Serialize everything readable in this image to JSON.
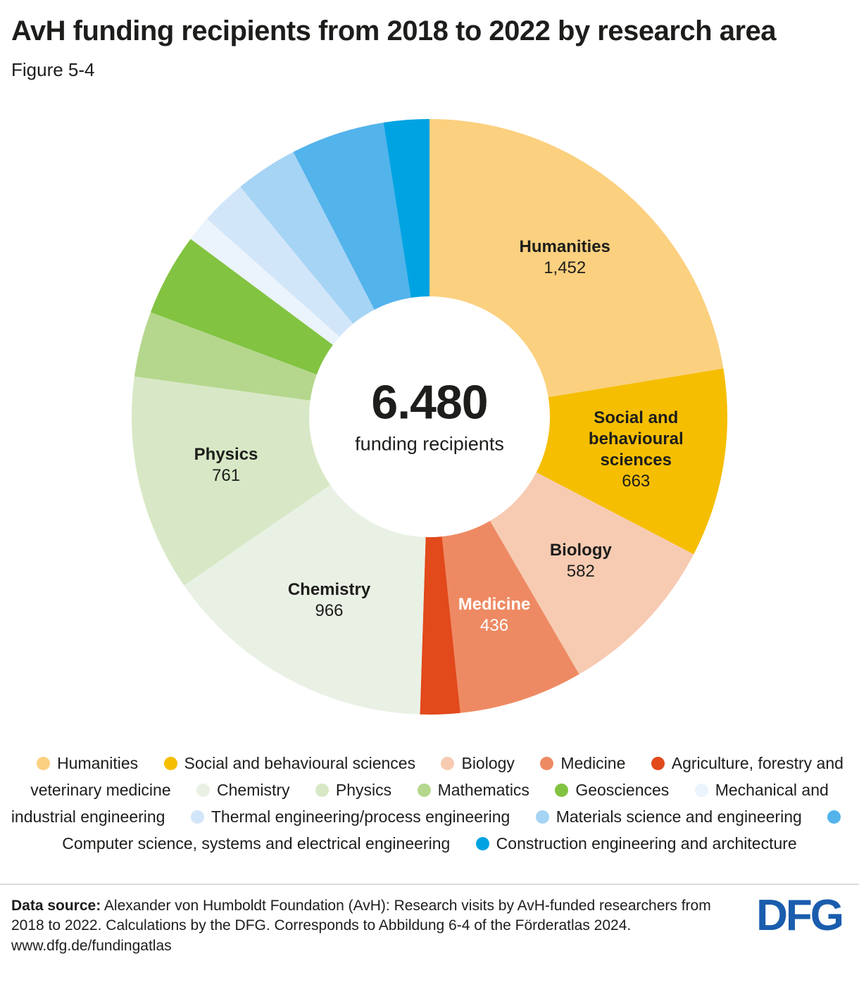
{
  "header": {
    "title": "AvH funding recipients from 2018 to 2022 by research area",
    "figure_label": "Figure 5-4"
  },
  "chart_data": {
    "type": "pie",
    "title": "AvH funding recipients from 2018 to 2022 by research area",
    "total": 6480,
    "center": {
      "value_label": "6.480",
      "caption": "funding recipients"
    },
    "legend_position": "bottom",
    "segments": [
      {
        "name": "Humanities",
        "value": 1452,
        "value_label": "1,452",
        "color": "#FBD07F",
        "label_lines": [
          "Humanities"
        ],
        "label_color": "#1d1d1b"
      },
      {
        "name": "Social and behavioural sciences",
        "value": 663,
        "value_label": "663",
        "color": "#F5BE00",
        "label_lines": [
          "Social and",
          "behavioural",
          "sciences"
        ],
        "label_color": "#1d1d1b"
      },
      {
        "name": "Biology",
        "value": 582,
        "value_label": "582",
        "color": "#F7CBB2",
        "label_lines": [
          "Biology"
        ],
        "label_color": "#1d1d1b"
      },
      {
        "name": "Medicine",
        "value": 436,
        "value_label": "436",
        "color": "#EE8A63",
        "label_lines": [
          "Medicine"
        ],
        "label_color": "#ffffff"
      },
      {
        "name": "Agriculture, forestry and veterinary medicine",
        "value": 140,
        "color": "#E2491B"
      },
      {
        "name": "Chemistry",
        "value": 966,
        "value_label": "966",
        "color": "#E9F1E5",
        "label_lines": [
          "Chemistry"
        ],
        "label_color": "#1d1d1b"
      },
      {
        "name": "Physics",
        "value": 761,
        "value_label": "761",
        "color": "#D8E8C6",
        "label_lines": [
          "Physics"
        ],
        "label_color": "#1d1d1b"
      },
      {
        "name": "Mathematics",
        "value": 230,
        "color": "#B5D78D"
      },
      {
        "name": "Geosciences",
        "value": 290,
        "color": "#82C341"
      },
      {
        "name": "Mechanical and industrial engineering",
        "value": 90,
        "color": "#EBF3FC"
      },
      {
        "name": "Thermal engineering/process engineering",
        "value": 160,
        "color": "#D2E6F9"
      },
      {
        "name": "Materials science and engineering",
        "value": 220,
        "color": "#A6D4F5"
      },
      {
        "name": "Computer science, systems and electrical engineering",
        "value": 330,
        "color": "#53B3EB"
      },
      {
        "name": "Construction engineering and architecture",
        "value": 160,
        "color": "#00A3E2"
      }
    ]
  },
  "legend": {
    "items": [
      {
        "label": "Humanities",
        "color": "#FBD07F"
      },
      {
        "label": "Social and behavioural sciences",
        "color": "#F5BE00"
      },
      {
        "label": "Biology",
        "color": "#F7CBB2"
      },
      {
        "label": "Medicine",
        "color": "#EE8A63"
      },
      {
        "label": "Agriculture, forestry and veterinary medicine",
        "color": "#E2491B"
      },
      {
        "label": "Chemistry",
        "color": "#E9F1E5"
      },
      {
        "label": "Physics",
        "color": "#D8E8C6"
      },
      {
        "label": "Mathematics",
        "color": "#B5D78D"
      },
      {
        "label": "Geosciences",
        "color": "#82C341"
      },
      {
        "label": "Mechanical and industrial engineering",
        "color": "#EBF3FC"
      },
      {
        "label": "Thermal engineering/process engineering",
        "color": "#D2E6F9"
      },
      {
        "label": "Materials science and engineering",
        "color": "#A6D4F5"
      },
      {
        "label": "Computer science, systems and electrical engineering",
        "color": "#53B3EB"
      },
      {
        "label": "Construction engineering and architecture",
        "color": "#00A3E2"
      }
    ]
  },
  "footer": {
    "source_label": "Data source:",
    "source_text": "Alexander von Humboldt Foundation (AvH): Research visits by AvH-funded researchers from 2018 to 2022. Calculations by the DFG. Corresponds to Abbildung 6-4 of the Förderatlas 2024.",
    "source_url": "www.dfg.de/fundingatlas",
    "logo": "DFG"
  }
}
